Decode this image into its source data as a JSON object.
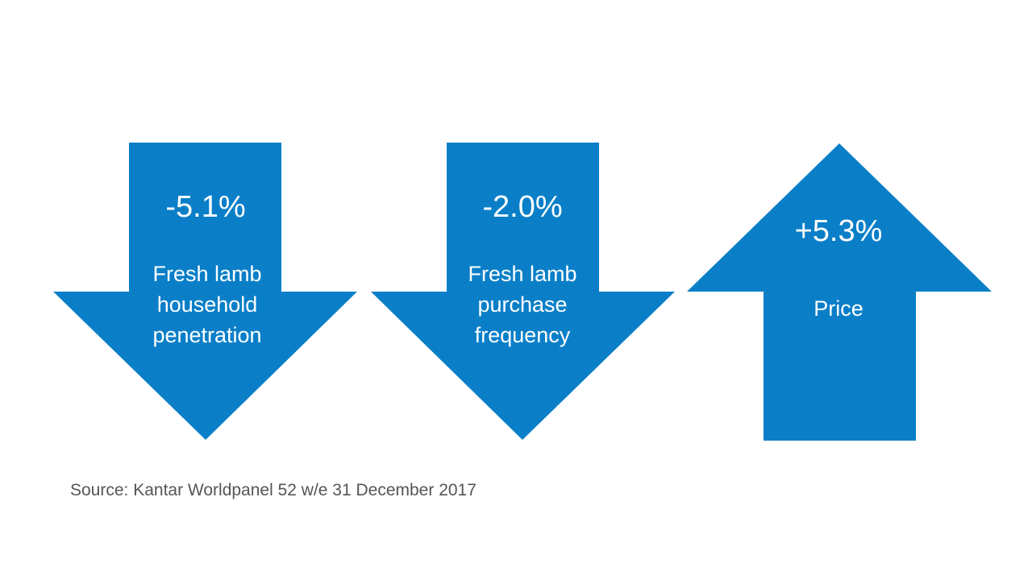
{
  "accent_color": "#0A7FC8",
  "arrows": [
    {
      "direction": "down",
      "value": "-5.1%",
      "label_lines": [
        "Fresh lamb",
        "household",
        "penetration"
      ]
    },
    {
      "direction": "down",
      "value": "-2.0%",
      "label_lines": [
        "Fresh lamb",
        "purchase",
        "frequency"
      ]
    },
    {
      "direction": "up",
      "value": "+5.3%",
      "label_lines": [
        "Price"
      ]
    }
  ],
  "source": "Source: Kantar Worldpanel 52 w/e 31 December 2017"
}
